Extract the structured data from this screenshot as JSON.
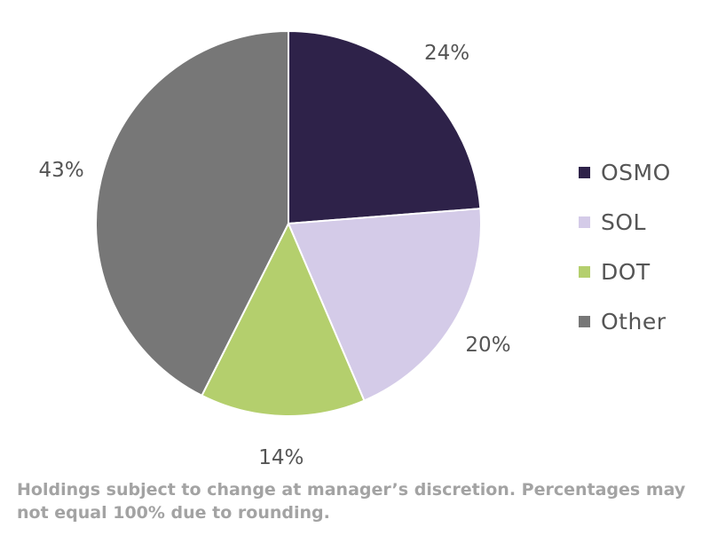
{
  "chart_data": {
    "type": "pie",
    "slices": [
      {
        "label": "OSMO",
        "value": 24,
        "display": "24%",
        "color": "#2e2249"
      },
      {
        "label": "SOL",
        "value": 20,
        "display": "20%",
        "color": "#d4cbe8"
      },
      {
        "label": "DOT",
        "value": 14,
        "display": "14%",
        "color": "#b4cf6d"
      },
      {
        "label": "Other",
        "value": 43,
        "display": "43%",
        "color": "#777777"
      }
    ],
    "legend_position": "right"
  },
  "footnote": "Holdings subject to change at manager’s discretion.  Percentages may not equal 100% due to rounding."
}
